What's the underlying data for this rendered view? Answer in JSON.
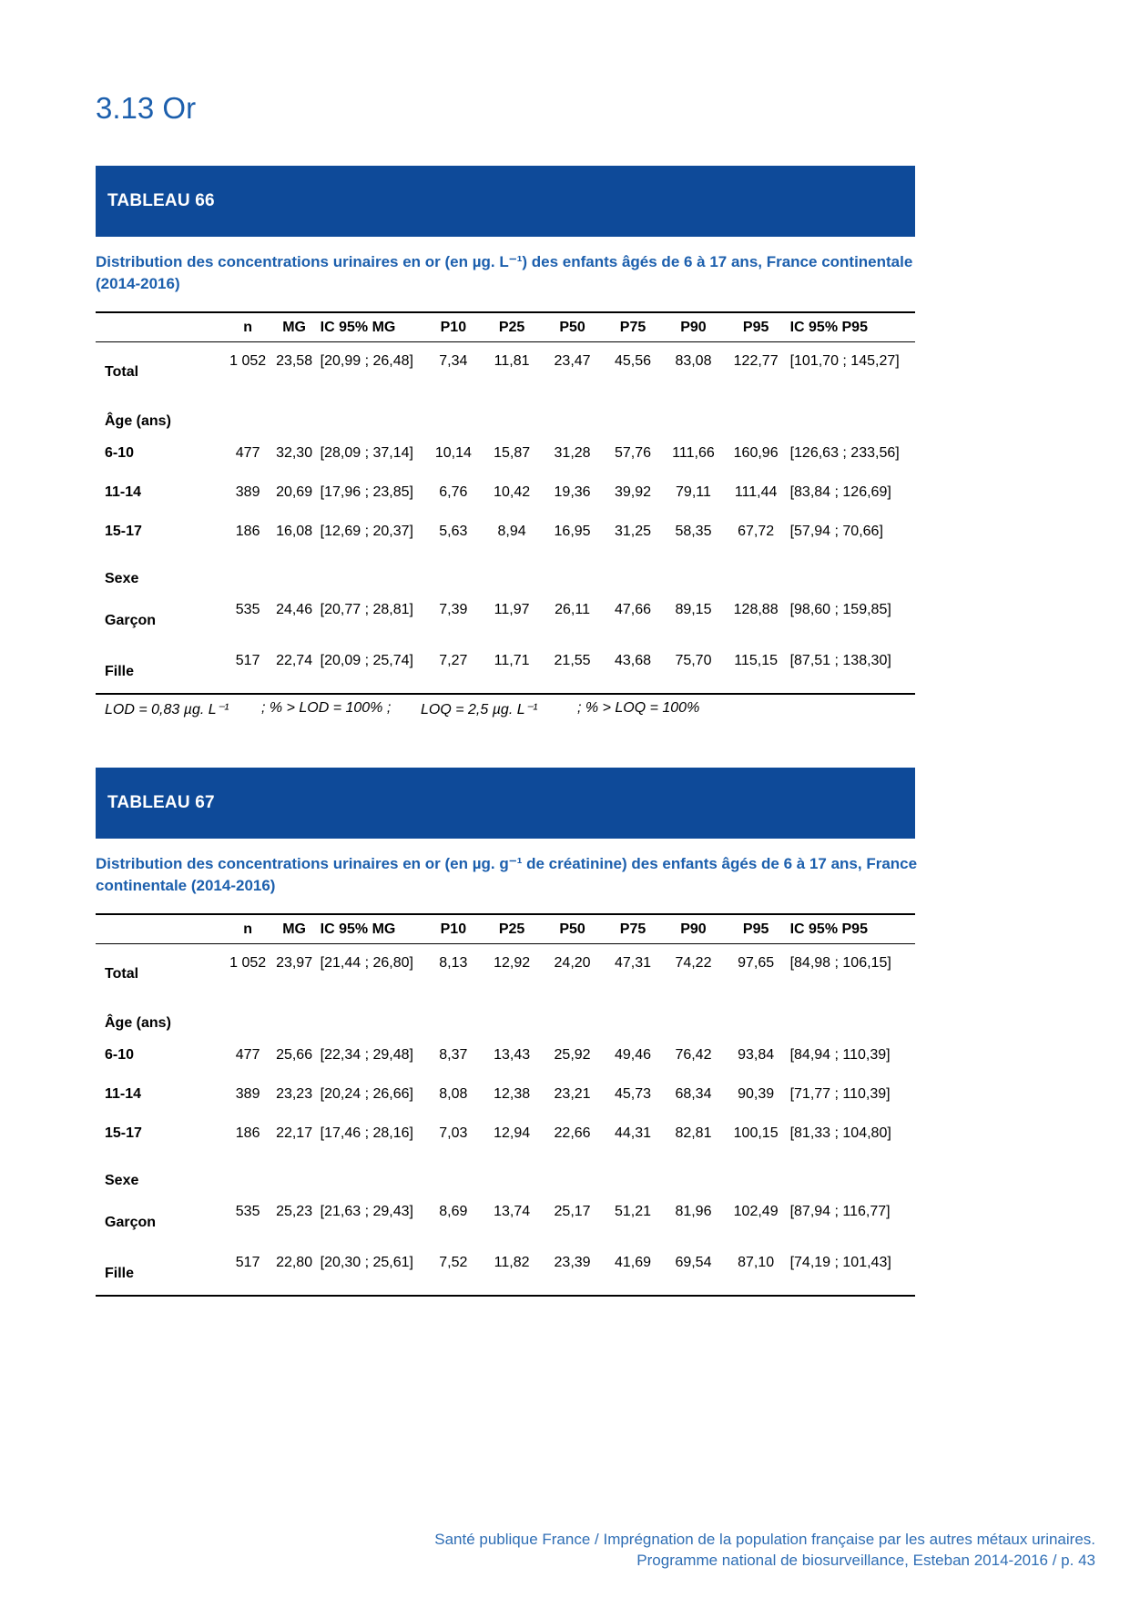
{
  "page": {
    "title": "3.13 Or",
    "footer": {
      "line1": "Santé publique France / Imprégnation de la population française par les autres métaux urinaires.",
      "line2": "Programme national de biosurveillance, Esteban 2014-2016 / p. 43"
    }
  },
  "colors": {
    "banner_bg": "#0E4A99",
    "heading_blue": "#1C5FAD",
    "footer_blue": "#2F6EB5"
  },
  "tables": [
    {
      "banner": "TABLEAU 66",
      "caption_lines": [
        "Distribution des concentrations urinaires en or (en µg. L⁻¹) des enfants âgés de 6 à 17 ans, France continentale",
        "(2014-2016)"
      ],
      "columns": [
        "",
        "n",
        "MG",
        "IC 95% MG",
        "P10",
        "P25",
        "P50",
        "P75",
        "P90",
        "P95",
        "IC 95% P95"
      ],
      "rows": [
        {
          "type": "data",
          "offset": true,
          "label": "Total",
          "values": [
            "1 052",
            "23,58",
            "[20,99 ; 26,48]",
            "7,34",
            "11,81",
            "23,47",
            "45,56",
            "83,08",
            "122,77",
            "[101,70 ; 145,27]"
          ]
        },
        {
          "type": "section",
          "label": "Âge  (ans)"
        },
        {
          "type": "data",
          "offset": false,
          "label": "6-10",
          "values": [
            "477",
            "32,30",
            "[28,09 ; 37,14]",
            "10,14",
            "15,87",
            "31,28",
            "57,76",
            "111,66",
            "160,96",
            "[126,63 ; 233,56]"
          ]
        },
        {
          "type": "data",
          "offset": false,
          "label": "11-14",
          "values": [
            "389",
            "20,69",
            "[17,96 ; 23,85]",
            "6,76",
            "10,42",
            "19,36",
            "39,92",
            "79,11",
            "111,44",
            "[83,84 ; 126,69]"
          ]
        },
        {
          "type": "data",
          "offset": false,
          "label": "15-17",
          "values": [
            "186",
            "16,08",
            "[12,69 ; 20,37]",
            "5,63",
            "8,94",
            "16,95",
            "31,25",
            "58,35",
            "67,72",
            "[57,94 ; 70,66]"
          ]
        },
        {
          "type": "section",
          "label": "Sexe"
        },
        {
          "type": "data",
          "offset": true,
          "label": "Garçon",
          "values": [
            "535",
            "24,46",
            "[20,77 ; 28,81]",
            "7,39",
            "11,97",
            "26,11",
            "47,66",
            "89,15",
            "128,88",
            "[98,60 ; 159,85]"
          ]
        },
        {
          "type": "data",
          "offset": true,
          "label": "Fille",
          "values": [
            "517",
            "22,74",
            "[20,09 ; 25,74]",
            "7,27",
            "11,71",
            "21,55",
            "43,68",
            "75,70",
            "115,15",
            "[87,51 ; 138,30]"
          ]
        }
      ],
      "footnote": [
        "LOD =  0,83 µg. L⁻¹",
        "; % > LOD = 100% ;",
        "LOQ =  2,5 µg. L⁻¹",
        "; % > LOQ = 100%"
      ]
    },
    {
      "banner": "TABLEAU 67",
      "caption_lines": [
        "Distribution des concentrations urinaires en or (en µg. g⁻¹ de créatinine) des enfants âgés de 6 à 17 ans, France",
        "continentale (2014-2016)"
      ],
      "columns": [
        "",
        "n",
        "MG",
        "IC 95% MG",
        "P10",
        "P25",
        "P50",
        "P75",
        "P90",
        "P95",
        "IC 95% P95"
      ],
      "rows": [
        {
          "type": "data",
          "offset": true,
          "label": "Total",
          "values": [
            "1 052",
            "23,97",
            "[21,44 ; 26,80]",
            "8,13",
            "12,92",
            "24,20",
            "47,31",
            "74,22",
            "97,65",
            "[84,98 ; 106,15]"
          ]
        },
        {
          "type": "section",
          "label": "Âge  (ans)"
        },
        {
          "type": "data",
          "offset": false,
          "label": "6-10",
          "values": [
            "477",
            "25,66",
            "[22,34 ; 29,48]",
            "8,37",
            "13,43",
            "25,92",
            "49,46",
            "76,42",
            "93,84",
            "[84,94 ; 110,39]"
          ]
        },
        {
          "type": "data",
          "offset": false,
          "label": "11-14",
          "values": [
            "389",
            "23,23",
            "[20,24 ; 26,66]",
            "8,08",
            "12,38",
            "23,21",
            "45,73",
            "68,34",
            "90,39",
            "[71,77 ; 110,39]"
          ]
        },
        {
          "type": "data",
          "offset": false,
          "label": "15-17",
          "values": [
            "186",
            "22,17",
            "[17,46 ; 28,16]",
            "7,03",
            "12,94",
            "22,66",
            "44,31",
            "82,81",
            "100,15",
            "[81,33 ; 104,80]"
          ]
        },
        {
          "type": "section",
          "label": "Sexe"
        },
        {
          "type": "data",
          "offset": true,
          "label": "Garçon",
          "values": [
            "535",
            "25,23",
            "[21,63 ; 29,43]",
            "8,69",
            "13,74",
            "25,17",
            "51,21",
            "81,96",
            "102,49",
            "[87,94 ; 116,77]"
          ]
        },
        {
          "type": "data",
          "offset": true,
          "label": "Fille",
          "values": [
            "517",
            "22,80",
            "[20,30 ; 25,61]",
            "7,52",
            "11,82",
            "23,39",
            "41,69",
            "69,54",
            "87,10",
            "[74,19 ; 101,43]"
          ]
        }
      ],
      "footnote": []
    }
  ]
}
